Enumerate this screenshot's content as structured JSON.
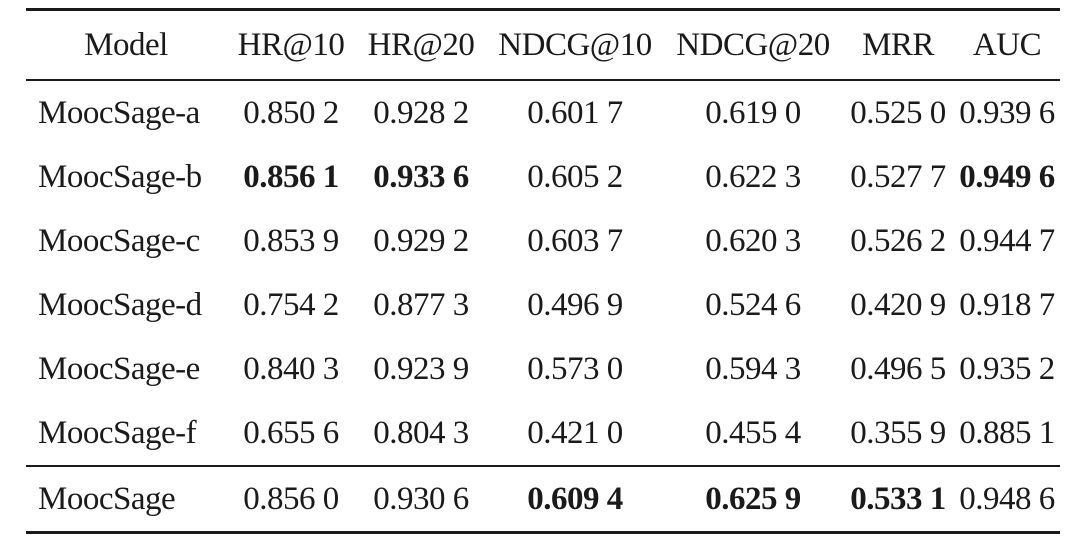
{
  "table": {
    "headers": [
      "Model",
      "HR@10",
      "HR@20",
      "NDCG@10",
      "NDCG@20",
      "MRR",
      "AUC"
    ],
    "rows": [
      {
        "model": "MoocSage-a",
        "values": [
          "0.850 2",
          "0.928 2",
          "0.601 7",
          "0.619 0",
          "0.525 0",
          "0.939 6"
        ],
        "bold": [
          false,
          false,
          false,
          false,
          false,
          false
        ]
      },
      {
        "model": "MoocSage-b",
        "values": [
          "0.856 1",
          "0.933 6",
          "0.605 2",
          "0.622 3",
          "0.527 7",
          "0.949 6"
        ],
        "bold": [
          true,
          true,
          false,
          false,
          false,
          true
        ]
      },
      {
        "model": "MoocSage-c",
        "values": [
          "0.853 9",
          "0.929 2",
          "0.603 7",
          "0.620 3",
          "0.526 2",
          "0.944 7"
        ],
        "bold": [
          false,
          false,
          false,
          false,
          false,
          false
        ]
      },
      {
        "model": "MoocSage-d",
        "values": [
          "0.754 2",
          "0.877 3",
          "0.496 9",
          "0.524 6",
          "0.420 9",
          "0.918 7"
        ],
        "bold": [
          false,
          false,
          false,
          false,
          false,
          false
        ]
      },
      {
        "model": "MoocSage-e",
        "values": [
          "0.840 3",
          "0.923 9",
          "0.573 0",
          "0.594 3",
          "0.496 5",
          "0.935 2"
        ],
        "bold": [
          false,
          false,
          false,
          false,
          false,
          false
        ]
      },
      {
        "model": "MoocSage-f",
        "values": [
          "0.655 6",
          "0.804 3",
          "0.421 0",
          "0.455 4",
          "0.355 9",
          "0.885 1"
        ],
        "bold": [
          false,
          false,
          false,
          false,
          false,
          false
        ]
      },
      {
        "model": "MoocSage",
        "values": [
          "0.856 0",
          "0.930 6",
          "0.609 4",
          "0.625 9",
          "0.533 1",
          "0.948 6"
        ],
        "bold": [
          false,
          false,
          true,
          true,
          true,
          false
        ]
      }
    ]
  }
}
